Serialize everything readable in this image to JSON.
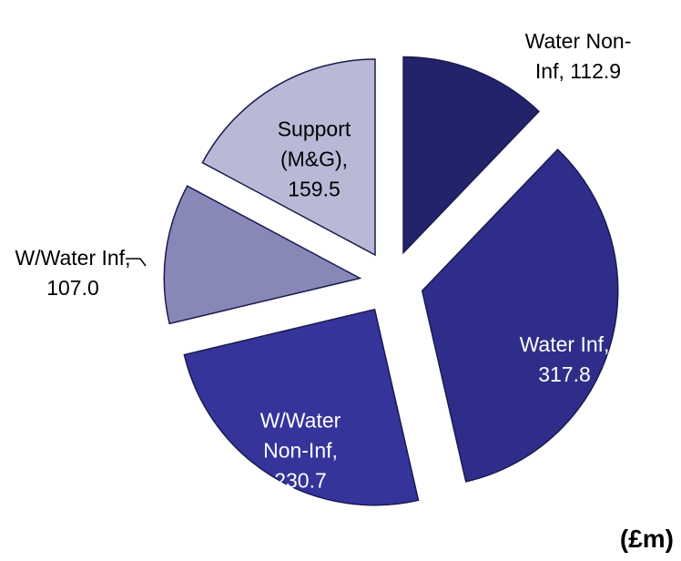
{
  "chart_data": {
    "type": "pie",
    "subtitle": "(£m)",
    "categories": [
      "Water Non-Inf,",
      "Water Inf,",
      "W/Water Non-Inf,",
      "W/Water Inf,",
      "Support (M&G),"
    ],
    "values": [
      112.9,
      317.8,
      230.7,
      107.0,
      159.5
    ],
    "value_labels": [
      "112.9",
      "317.8",
      "230.7",
      "107.0",
      "159.5"
    ],
    "colors": [
      "#23236b",
      "#2e2e8a",
      "#34349a",
      "#8787b8",
      "#b9b9d6"
    ]
  }
}
